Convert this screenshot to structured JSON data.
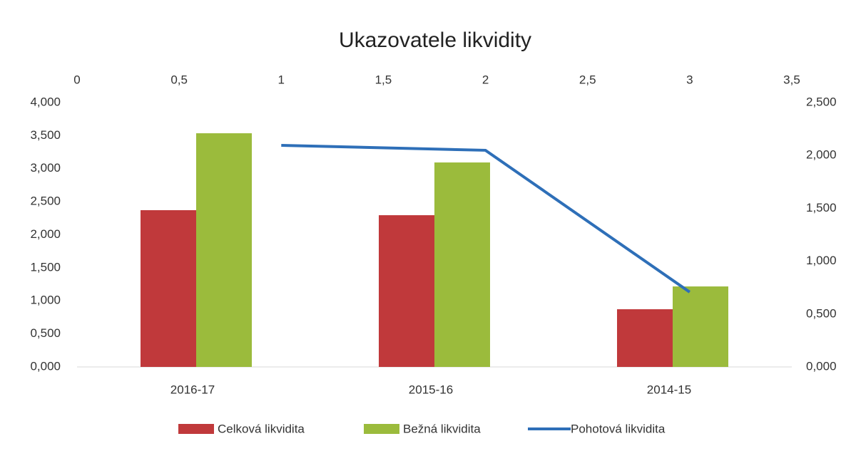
{
  "chart_data": {
    "type": "bar",
    "title": "Ukazovatele likvidity",
    "categories": [
      "2016-17",
      "2015-16",
      "2014-15"
    ],
    "series": [
      {
        "name": "Celková likvidita",
        "color": "#c0393b",
        "values": [
          2.372,
          2.296,
          0.873
        ]
      },
      {
        "name": "Bežná likvidita",
        "color": "#9bbb3c",
        "values": [
          3.536,
          3.094,
          1.218
        ]
      },
      {
        "name": "Pohotová likvidita",
        "color": "#2e6fb8",
        "type": "line",
        "axis": "y2",
        "x": [
          1,
          2,
          3
        ],
        "values": [
          2.096,
          2.049,
          0.708
        ]
      }
    ],
    "ylim": [
      0,
      4
    ],
    "yticks": [
      {
        "value": 0,
        "label": "0,000"
      },
      {
        "value": 0.5,
        "label": "0,500"
      },
      {
        "value": 1,
        "label": "1,000"
      },
      {
        "value": 1.5,
        "label": "1,500"
      },
      {
        "value": 2,
        "label": "2,000"
      },
      {
        "value": 2.5,
        "label": "2,500"
      },
      {
        "value": 3,
        "label": "3,000"
      },
      {
        "value": 3.5,
        "label": "3,500"
      },
      {
        "value": 4,
        "label": "4,000"
      }
    ],
    "y2lim": [
      0,
      2.5
    ],
    "y2ticks": [
      {
        "value": 0,
        "label": "0,000"
      },
      {
        "value": 0.5,
        "label": "0,500"
      },
      {
        "value": 1,
        "label": "1,000"
      },
      {
        "value": 1.5,
        "label": "1,500"
      },
      {
        "value": 2,
        "label": "2,000"
      },
      {
        "value": 2.5,
        "label": "2,500"
      }
    ],
    "x2lim": [
      0,
      3.5
    ],
    "x2ticks": [
      0,
      {
        "value": 0.5,
        "label": "0,5"
      },
      1,
      {
        "value": 1.5,
        "label": "1,5"
      },
      2,
      {
        "value": 2.5,
        "label": "2,5"
      },
      3,
      {
        "value": 3.5,
        "label": "3,5"
      }
    ],
    "legend": "bottom"
  }
}
